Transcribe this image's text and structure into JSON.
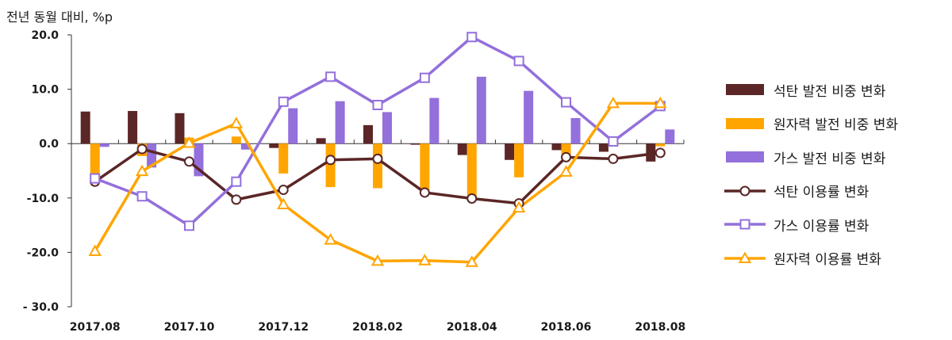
{
  "chart_data": {
    "type": "bar+line",
    "ylabel": "전년 동월 대비, %p",
    "ylim": [
      -30,
      20
    ],
    "yticks": [
      20,
      10,
      0,
      -10,
      -20,
      -30
    ],
    "ytick_labels": [
      "20.0",
      "10.0",
      "0.0",
      "-10.0",
      "-20.0",
      "- 30.0"
    ],
    "categories": [
      "2017.08",
      "2017.09",
      "2017.10",
      "2017.11",
      "2017.12",
      "2018.01",
      "2018.02",
      "2018.03",
      "2018.04",
      "2018.05",
      "2018.06",
      "2018.07",
      "2018.08"
    ],
    "x_tick_labels": [
      "2017.08",
      "",
      "2017.10",
      "",
      "2017.12",
      "",
      "2018.02",
      "",
      "2018.04",
      "",
      "2018.06",
      "",
      "2018.08"
    ],
    "bar_series": [
      {
        "name": "석탄 발전 비중 변화",
        "color": "#5b2626",
        "values": [
          5.9,
          6.0,
          5.6,
          0.0,
          -0.8,
          1.0,
          3.4,
          -0.2,
          -2.1,
          -3.0,
          -1.2,
          -1.5,
          -3.3
        ]
      },
      {
        "name": "원자력 발전 비중 변화",
        "color": "#ffa500",
        "values": [
          -6.3,
          -2.3,
          1.1,
          1.3,
          -5.5,
          -8.0,
          -8.2,
          -8.5,
          -9.8,
          -6.2,
          -2.0,
          -0.5,
          -0.5
        ]
      },
      {
        "name": "가스 발전 비중 변화",
        "color": "#9370db",
        "values": [
          -0.6,
          -4.4,
          -6.0,
          -1.1,
          6.5,
          7.8,
          5.8,
          8.4,
          12.3,
          9.7,
          4.7,
          0.0,
          2.6
        ]
      }
    ],
    "line_series": [
      {
        "name": "석탄 이용률 변화",
        "color": "#5b2626",
        "marker": "circle",
        "values": [
          -7.0,
          -1.0,
          -3.3,
          -10.3,
          -8.5,
          -3.0,
          -2.8,
          -9.0,
          -10.1,
          -11.0,
          -2.5,
          -2.8,
          -1.7
        ]
      },
      {
        "name": "가스 이용률 변화",
        "color": "#9370db",
        "marker": "square",
        "values": [
          -6.4,
          -9.7,
          -15.1,
          -7.0,
          7.7,
          12.3,
          7.1,
          12.1,
          19.6,
          15.2,
          7.6,
          0.4,
          6.9
        ]
      },
      {
        "name": "원자력 이용률 변화",
        "color": "#ffa500",
        "marker": "triangle",
        "values": [
          -19.8,
          -5.1,
          0.1,
          3.7,
          -11.2,
          -17.7,
          -21.6,
          -21.5,
          -21.8,
          -11.8,
          -5.2,
          7.4,
          7.4
        ]
      }
    ],
    "legend_position": "right"
  }
}
